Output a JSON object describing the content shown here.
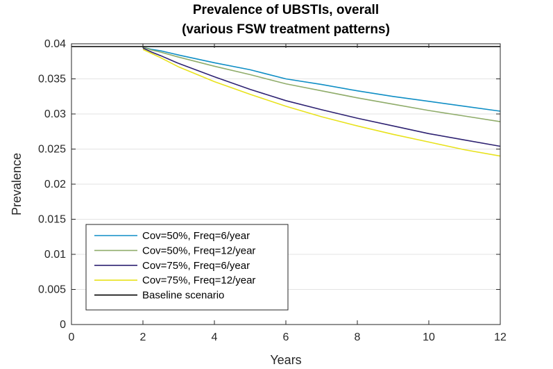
{
  "chart_data": {
    "type": "line",
    "title": "Prevalence of UBSTIs, overall",
    "subtitle": "(various FSW treatment patterns)",
    "xlabel": "Years",
    "ylabel": "Prevalence",
    "xlim": [
      0,
      12
    ],
    "ylim": [
      0,
      0.04
    ],
    "xticks": [
      0,
      2,
      4,
      6,
      8,
      10,
      12
    ],
    "yticks": [
      0,
      0.005,
      0.01,
      0.015,
      0.02,
      0.025,
      0.03,
      0.035,
      0.04
    ],
    "xtick_labels": [
      "0",
      "2",
      "4",
      "6",
      "8",
      "10",
      "12"
    ],
    "ytick_labels": [
      "0",
      "0.005",
      "0.01",
      "0.015",
      "0.02",
      "0.025",
      "0.03",
      "0.035",
      "0.04"
    ],
    "grid": "horizontal",
    "legend_position": "bottom-left",
    "series": [
      {
        "name": "Cov=50%, Freq=6/year",
        "color": "#0f8ec5",
        "x": [
          2,
          2.25,
          2.5,
          3,
          4,
          5,
          6,
          7,
          8,
          9,
          10,
          11,
          12
        ],
        "y": [
          0.0395,
          0.0392,
          0.039,
          0.0384,
          0.0373,
          0.0363,
          0.035,
          0.0342,
          0.0333,
          0.0325,
          0.0318,
          0.0311,
          0.0304
        ]
      },
      {
        "name": "Cov=50%, Freq=12/year",
        "color": "#8fac6a",
        "x": [
          2,
          2.25,
          2.5,
          3,
          4,
          5,
          6,
          7,
          8,
          9,
          10,
          11,
          12
        ],
        "y": [
          0.0395,
          0.0391,
          0.0388,
          0.0381,
          0.0368,
          0.0356,
          0.0343,
          0.0333,
          0.0323,
          0.0314,
          0.0305,
          0.0297,
          0.0289
        ]
      },
      {
        "name": "Cov=75%, Freq=6/year",
        "color": "#2e2272",
        "x": [
          2,
          2.25,
          2.5,
          3,
          4,
          5,
          6,
          7,
          8,
          9,
          10,
          11,
          12
        ],
        "y": [
          0.0394,
          0.0388,
          0.0383,
          0.0372,
          0.0353,
          0.0335,
          0.0319,
          0.0306,
          0.0294,
          0.0283,
          0.0272,
          0.0263,
          0.0254
        ]
      },
      {
        "name": "Cov=75%, Freq=12/year",
        "color": "#e8e21c",
        "x": [
          2,
          2.25,
          2.5,
          3,
          4,
          5,
          6,
          7,
          8,
          9,
          10,
          11,
          12
        ],
        "y": [
          0.0392,
          0.0386,
          0.038,
          0.0367,
          0.0346,
          0.0328,
          0.0311,
          0.0296,
          0.0283,
          0.0271,
          0.026,
          0.0249,
          0.024
        ]
      },
      {
        "name": "Baseline scenario",
        "color": "#000000",
        "x": [
          0,
          12
        ],
        "y": [
          0.0396,
          0.0396
        ]
      }
    ]
  }
}
